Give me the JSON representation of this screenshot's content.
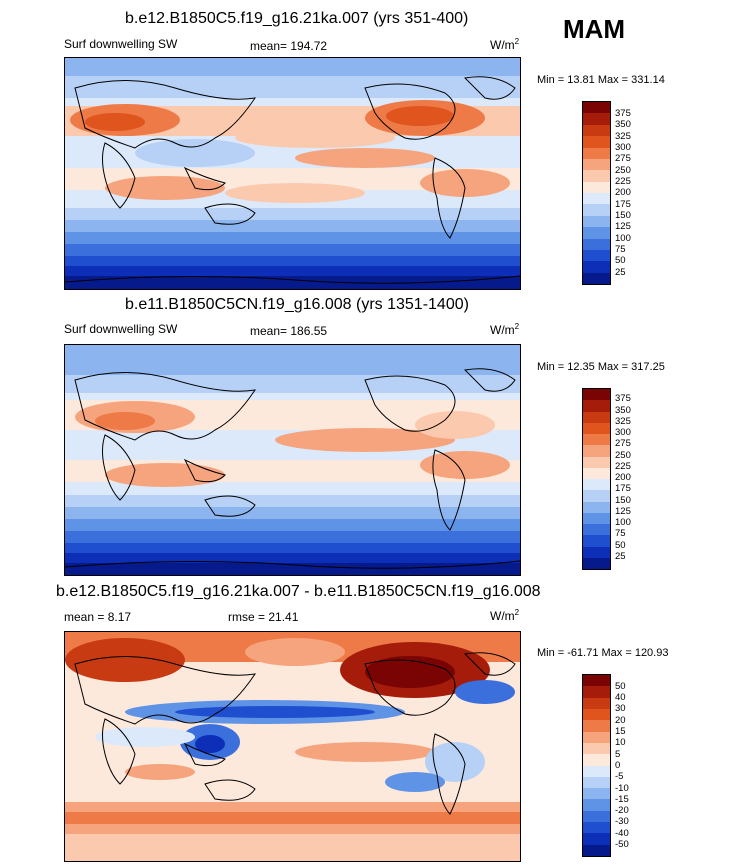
{
  "season": "MAM",
  "panels": [
    {
      "title": "b.e12.B1850C5.f19_g16.21ka.007 (yrs 351-400)",
      "left_label": "Surf downwelling SW",
      "center_label": "mean= 194.72",
      "units_base": "W/m",
      "units_exp": "2",
      "minmax": "Min =  13.81 Max = 331.14",
      "levels": [
        "375",
        "350",
        "325",
        "300",
        "275",
        "250",
        "225",
        "200",
        "175",
        "150",
        "125",
        "100",
        "75",
        "50",
        "25"
      ]
    },
    {
      "title": "b.e11.B1850C5CN.f19_g16.008 (yrs 1351-1400)",
      "left_label": "Surf downwelling SW",
      "center_label": "mean= 186.55",
      "units_base": "W/m",
      "units_exp": "2",
      "minmax": "Min =  12.35 Max = 317.25",
      "levels": [
        "375",
        "350",
        "325",
        "300",
        "275",
        "250",
        "225",
        "200",
        "175",
        "150",
        "125",
        "100",
        "75",
        "50",
        "25"
      ]
    },
    {
      "title": "b.e12.B1850C5.f19_g16.21ka.007 - b.e11.B1850C5CN.f19_g16.008",
      "left_label": "mean =   8.17",
      "center_label": "rmse =  21.41",
      "units_base": "W/m",
      "units_exp": "2",
      "minmax": "Min = -61.71 Max = 120.93",
      "levels": [
        "50",
        "40",
        "30",
        "20",
        "15",
        "10",
        "5",
        "0",
        "-5",
        "-10",
        "-15",
        "-20",
        "-30",
        "-40",
        "-50"
      ]
    }
  ],
  "colors": {
    "scale16": [
      "#7a0403",
      "#a51c0a",
      "#c73a12",
      "#e0541e",
      "#ee7a48",
      "#f6a47d",
      "#fbc9ad",
      "#fde9dc",
      "#dce9fb",
      "#b7d1f6",
      "#8cb5ef",
      "#5f93e6",
      "#3a6fdc",
      "#1f4fcf",
      "#0d2fb8",
      "#061a8c"
    ]
  }
}
